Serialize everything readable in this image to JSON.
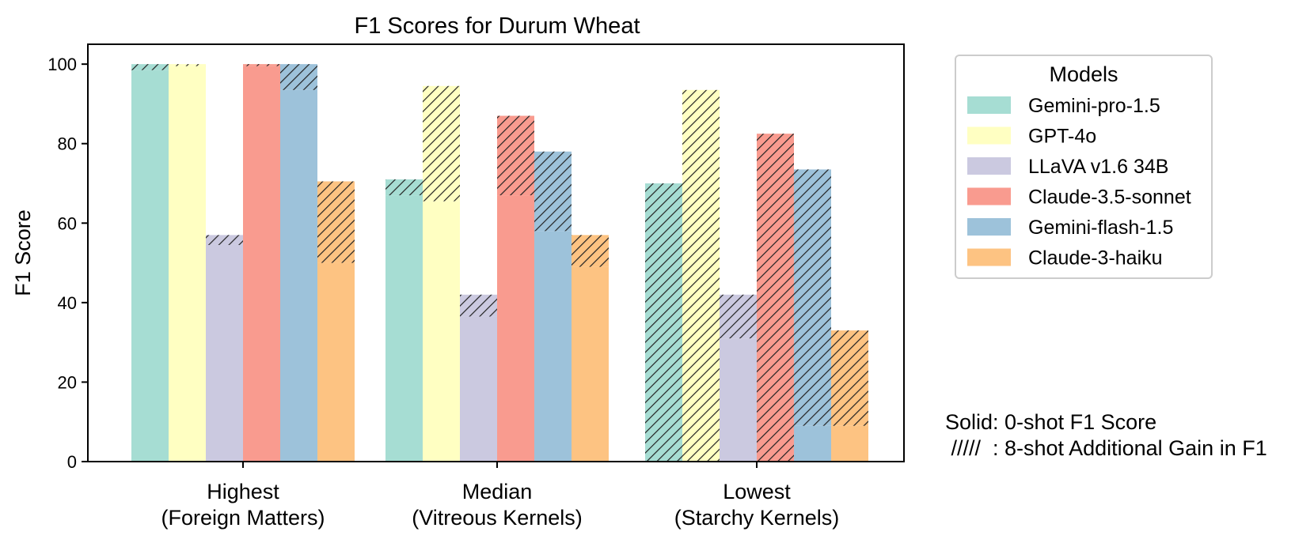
{
  "chart_data": {
    "type": "bar",
    "title": "F1 Scores for Durum Wheat",
    "xlabel": "",
    "ylabel": "F1 Score",
    "ylim": [
      0,
      105
    ],
    "yticks": [
      0,
      20,
      40,
      60,
      80,
      100
    ],
    "grid": false,
    "categories": [
      {
        "line1": "Highest",
        "line2": "(Foreign Matters)"
      },
      {
        "line1": "Median",
        "line2": "(Vitreous Kernels)"
      },
      {
        "line1": "Lowest",
        "line2": "(Starchy Kernels)"
      }
    ],
    "series": [
      {
        "name": "Gemini-pro-1.5",
        "color": "#a6ddd3",
        "zero_shot": [
          98.5,
          67,
          0
        ],
        "eight_shot_gain": [
          1.5,
          4,
          70
        ]
      },
      {
        "name": "GPT-4o",
        "color": "#ffffc2",
        "zero_shot": [
          99.5,
          65.5,
          0
        ],
        "eight_shot_gain": [
          0.5,
          29,
          93.5
        ]
      },
      {
        "name": "LLaVA v1.6 34B",
        "color": "#cbc9e0",
        "zero_shot": [
          54.5,
          36.5,
          31
        ],
        "eight_shot_gain": [
          2.5,
          5.5,
          11
        ]
      },
      {
        "name": "Claude-3.5-sonnet",
        "color": "#f99b8f",
        "zero_shot": [
          99.5,
          67,
          0
        ],
        "eight_shot_gain": [
          0.5,
          20,
          82.5
        ]
      },
      {
        "name": "Gemini-flash-1.5",
        "color": "#9dc2da",
        "zero_shot": [
          93.5,
          58,
          9
        ],
        "eight_shot_gain": [
          6.5,
          20,
          64.5
        ]
      },
      {
        "name": "Claude-3-haiku",
        "color": "#fdc382",
        "zero_shot": [
          50,
          49,
          9
        ],
        "eight_shot_gain": [
          20.5,
          8,
          24
        ]
      }
    ],
    "legend": {
      "title": "Models",
      "position": "right"
    },
    "annotations": {
      "solid": "Solid: 0-shot F1 Score",
      "hatched": " /////  : 8-shot Additional Gain in F1"
    }
  }
}
